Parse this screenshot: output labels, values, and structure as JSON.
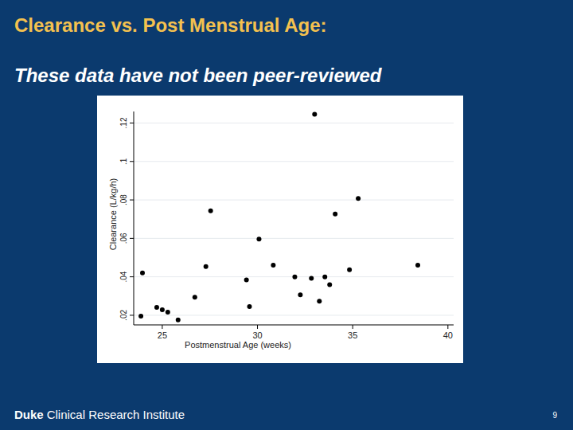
{
  "chart_data": {
    "type": "scatter",
    "title": "Clearance vs. Post Menstrual Age:",
    "subtitle": "These data have not been peer-reviewed",
    "x_label": "Postmenstrual Age (weeks)",
    "y_label": "Clearance (L/kg/h)",
    "x": [
      23.88,
      23.96,
      24.71,
      25.0,
      25.29,
      25.83,
      26.71,
      27.29,
      27.54,
      29.42,
      29.58,
      30.08,
      30.83,
      31.96,
      32.25,
      32.83,
      33.0,
      33.25,
      33.54,
      33.79,
      34.08,
      34.83,
      35.29,
      38.42
    ],
    "values": [
      0.0196,
      0.042,
      0.0241,
      0.0229,
      0.0216,
      0.0176,
      0.0294,
      0.0453,
      0.0743,
      0.0384,
      0.0245,
      0.0596,
      0.0461,
      0.04,
      0.0306,
      0.0392,
      0.1245,
      0.0273,
      0.04,
      0.0359,
      0.0727,
      0.0437,
      0.0808,
      0.0461
    ],
    "color": "#000000",
    "marker": "circle",
    "xlim": [
      23.5,
      40.3
    ],
    "xticks": [
      25,
      30,
      35,
      40
    ],
    "ylim": [
      0.015,
      0.126
    ],
    "yticks": [
      {
        "value": 0.02,
        "label": ".02"
      },
      {
        "value": 0.04,
        "label": ".04"
      },
      {
        "value": 0.06,
        "label": ".06"
      },
      {
        "value": 0.08,
        "label": ".08"
      },
      {
        "value": 0.1,
        "label": ".1"
      },
      {
        "value": 0.12,
        "label": ".12"
      }
    ],
    "grid": true
  },
  "footer": {
    "brand": "Duke",
    "text": "Clinical Research Institute",
    "page": 9
  }
}
